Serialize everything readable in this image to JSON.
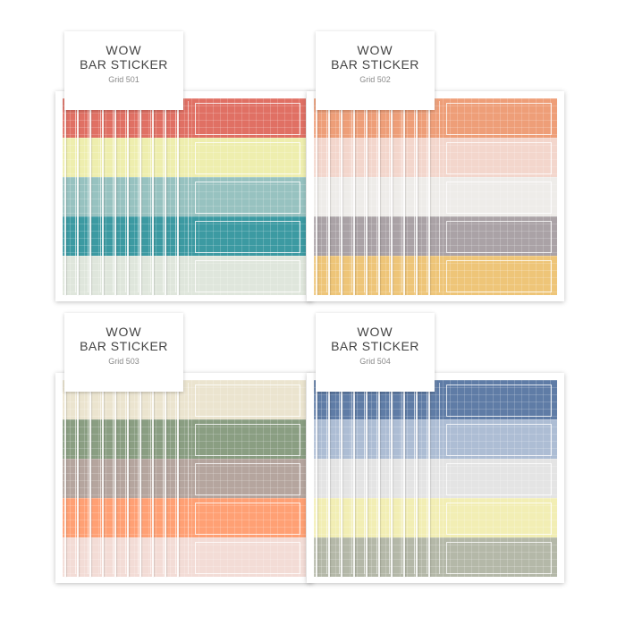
{
  "products": [
    {
      "brand": "WOW",
      "title": "BAR STICKER",
      "grid_label": "Grid 501",
      "stripe_colors": [
        "#e07064",
        "#eeeeae",
        "#97c2c0",
        "#3c9aa2",
        "#dfe6dc"
      ]
    },
    {
      "brand": "WOW",
      "title": "BAR STICKER",
      "grid_label": "Grid 502",
      "stripe_colors": [
        "#ee9e78",
        "#f3d6cc",
        "#eeece9",
        "#aaa2a6",
        "#eec578"
      ]
    },
    {
      "brand": "WOW",
      "title": "BAR STICKER",
      "grid_label": "Grid 503",
      "stripe_colors": [
        "#ebe4cf",
        "#8a9e82",
        "#b5a59e",
        "#ffa074",
        "#f3dcd6"
      ]
    },
    {
      "brand": "WOW",
      "title": "BAR STICKER",
      "grid_label": "Grid 504",
      "stripe_colors": [
        "#5f7ca6",
        "#adbdd4",
        "#e4e4e4",
        "#f2eeb4",
        "#b4b8a8"
      ]
    }
  ]
}
